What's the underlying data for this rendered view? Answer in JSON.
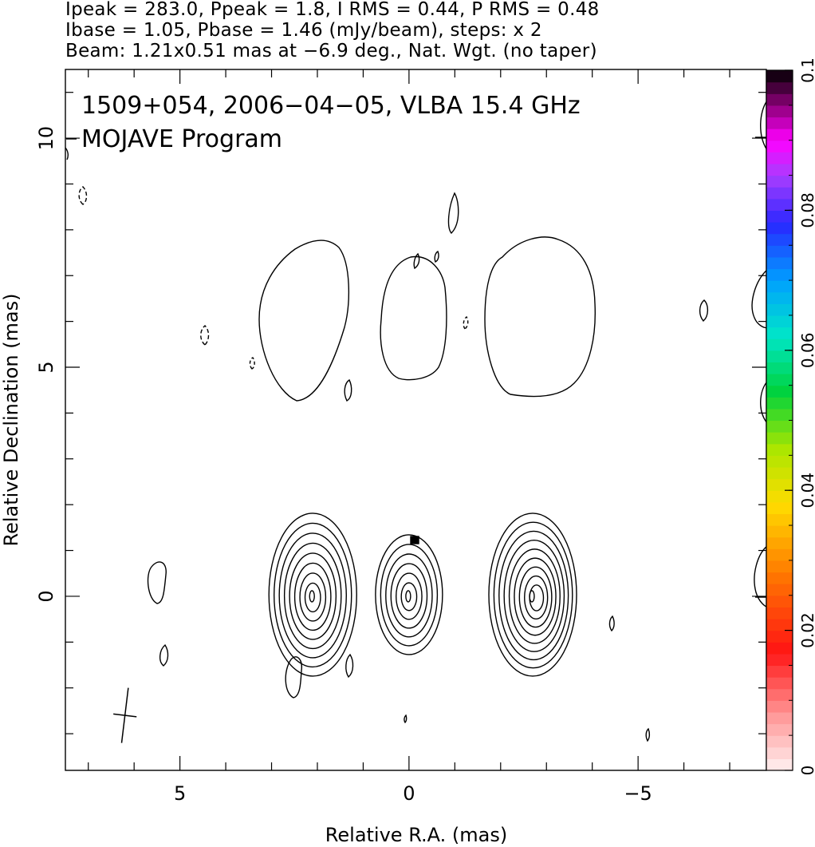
{
  "header": {
    "line1": "Ipeak = 283.0, Ppeak = 1.8, I RMS = 0.44, P RMS = 0.48",
    "line2": "Ibase = 1.05, Pbase = 1.46 (mJy/beam), steps: x 2",
    "line3": "Beam: 1.21x0.51 mas at −6.9 deg., Nat. Wgt. (no taper)"
  },
  "chart_data": {
    "type": "contour",
    "title": "1509+054, 2006−04−05, VLBA 15.4 GHz",
    "subtitle": "MOJAVE Program",
    "xlabel": "Relative R.A. (mas)",
    "ylabel": "Relative Declination (mas)",
    "xlim": [
      7.5,
      -7.8
    ],
    "ylim": [
      -3.8,
      11.5
    ],
    "x_ticks": [
      {
        "value": 5,
        "label": "5"
      },
      {
        "value": 0,
        "label": "0"
      },
      {
        "value": -5,
        "label": "−5"
      }
    ],
    "y_ticks": [
      {
        "value": 0,
        "label": "0"
      },
      {
        "value": 5,
        "label": "5"
      },
      {
        "value": 10,
        "label": "10"
      }
    ],
    "colorbar": {
      "range": [
        0,
        0.1
      ],
      "ticks": [
        {
          "value": 0,
          "label": "0"
        },
        {
          "value": 0.02,
          "label": "0.02"
        },
        {
          "value": 0.04,
          "label": "0.04"
        },
        {
          "value": 0.06,
          "label": "0.06"
        },
        {
          "value": 0.08,
          "label": "0.08"
        },
        {
          "value": 0.1,
          "label": "0.1"
        }
      ]
    },
    "beam": {
      "major_mas": 1.21,
      "minor_mas": 0.51,
      "pa_deg": -6.9,
      "center": [
        6.2,
        -2.6
      ]
    },
    "components": [
      {
        "name": "left",
        "x": 2.1,
        "y": 0.0,
        "levels": 8
      },
      {
        "name": "core",
        "x": 0.0,
        "y": 0.0,
        "levels": 6
      },
      {
        "name": "right",
        "x": -2.7,
        "y": 0.0,
        "levels": 9
      }
    ],
    "polarization_blobs": [
      {
        "x": 2.1,
        "y": 6.0
      },
      {
        "x": 0.1,
        "y": 6.0
      },
      {
        "x": -2.8,
        "y": 6.1
      }
    ]
  }
}
